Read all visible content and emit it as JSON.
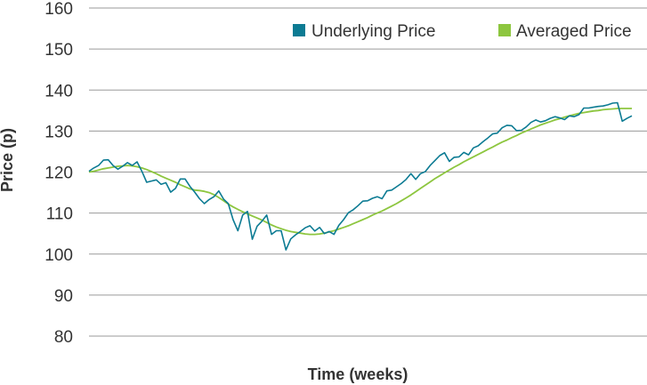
{
  "chart_data": {
    "type": "line",
    "xlabel": "Time (weeks)",
    "ylabel": "Price (p)",
    "ylim": [
      80,
      160
    ],
    "yticks": [
      "80",
      "90",
      "100",
      "110",
      "120",
      "130",
      "140",
      "150",
      "160"
    ],
    "grid": "horizontal",
    "legend_position": "top-right",
    "x": [
      1,
      2,
      3,
      4,
      5,
      6,
      7,
      8,
      9,
      10,
      11,
      12,
      13,
      14,
      15,
      16,
      17,
      18,
      19,
      20,
      21,
      22,
      23,
      24,
      25,
      26,
      27,
      28,
      29,
      30,
      31,
      32,
      33,
      34,
      35,
      36,
      37,
      38,
      39,
      40,
      41,
      42,
      43,
      44,
      45,
      46,
      47,
      48,
      49,
      50,
      51,
      52,
      53,
      54,
      55,
      56,
      57,
      58,
      59,
      60,
      61,
      62,
      63,
      64,
      65,
      66,
      67,
      68,
      69,
      70,
      71,
      72,
      73,
      74,
      75,
      76,
      77,
      78,
      79,
      80,
      81,
      82,
      83,
      84,
      85,
      86,
      87,
      88,
      89,
      90,
      91,
      92,
      93,
      94,
      95,
      96,
      97,
      98,
      99,
      100,
      101,
      102,
      103,
      104,
      105,
      106,
      107,
      108,
      109,
      110,
      111,
      112,
      113,
      114
    ],
    "series": [
      {
        "name": "Underlying Price",
        "color": "#0c7b93",
        "values": [
          120.2,
          121.0,
          121.6,
          122.9,
          123.0,
          121.6,
          120.7,
          121.4,
          122.3,
          121.6,
          122.5,
          120.2,
          117.5,
          117.8,
          118.1,
          117.0,
          117.4,
          115.1,
          116.0,
          118.3,
          118.3,
          116.5,
          115.1,
          113.5,
          112.3,
          113.3,
          114.0,
          115.4,
          113.4,
          112.3,
          108.4,
          105.7,
          109.5,
          110.4,
          103.6,
          106.8,
          108.0,
          109.5,
          104.8,
          105.7,
          105.7,
          101.0,
          103.7,
          104.7,
          105.5,
          106.4,
          106.9,
          105.6,
          106.5,
          105.0,
          105.5,
          104.8,
          107.0,
          108.4,
          110.1,
          110.8,
          111.8,
          112.9,
          113.0,
          113.6,
          114.0,
          113.5,
          115.4,
          115.6,
          116.4,
          117.2,
          118.2,
          119.6,
          118.2,
          119.6,
          120.1,
          121.6,
          122.8,
          124.0,
          124.7,
          122.6,
          123.6,
          123.7,
          124.8,
          124.2,
          125.9,
          126.4,
          127.4,
          128.3,
          129.3,
          129.5,
          130.8,
          131.4,
          131.3,
          130.1,
          130.2,
          131.0,
          132.1,
          132.7,
          132.2,
          132.5,
          133.1,
          133.5,
          133.2,
          132.8,
          133.7,
          133.5,
          134.0,
          135.6,
          135.6,
          135.8,
          136.0,
          136.1,
          136.4,
          136.8,
          136.9,
          132.4,
          133.1,
          133.7
        ]
      },
      {
        "name": "Averaged Price",
        "color": "#8dc63f",
        "values": [
          120.0,
          120.2,
          120.5,
          120.8,
          121.0,
          121.2,
          121.4,
          121.5,
          121.6,
          121.5,
          121.3,
          121.0,
          120.6,
          120.1,
          119.6,
          119.0,
          118.5,
          118.0,
          117.5,
          116.9,
          116.4,
          115.9,
          115.6,
          115.5,
          115.3,
          115.0,
          114.5,
          113.8,
          113.0,
          112.2,
          111.5,
          110.9,
          110.3,
          109.8,
          109.3,
          108.8,
          108.3,
          107.7,
          107.1,
          106.6,
          106.2,
          105.8,
          105.5,
          105.3,
          105.1,
          104.9,
          104.8,
          104.8,
          104.9,
          105.1,
          105.4,
          105.7,
          106.1,
          106.5,
          106.9,
          107.4,
          107.9,
          108.4,
          108.9,
          109.5,
          110.0,
          110.5,
          111.1,
          111.7,
          112.3,
          113.0,
          113.7,
          114.4,
          115.2,
          116.0,
          116.8,
          117.6,
          118.4,
          119.1,
          119.8,
          120.5,
          121.2,
          121.8,
          122.5,
          123.1,
          123.7,
          124.3,
          124.9,
          125.5,
          126.1,
          126.7,
          127.3,
          127.8,
          128.4,
          128.9,
          129.5,
          130.0,
          130.5,
          131.0,
          131.5,
          131.9,
          132.3,
          132.7,
          133.0,
          133.4,
          133.7,
          134.0,
          134.3,
          134.5,
          134.7,
          134.9,
          135.0,
          135.2,
          135.3,
          135.4,
          135.5,
          135.5,
          135.5,
          135.5
        ]
      }
    ]
  }
}
